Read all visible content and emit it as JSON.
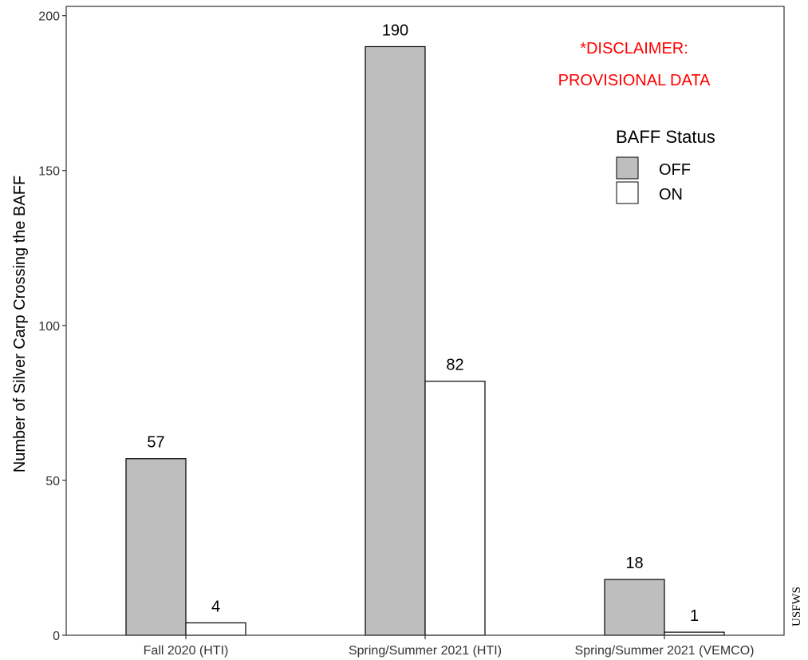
{
  "chart_data": {
    "type": "bar",
    "categories": [
      "Fall 2020 (HTI)",
      "Spring/Summer 2021 (HTI)",
      "Spring/Summer 2021 (VEMCO)"
    ],
    "series": [
      {
        "name": "OFF",
        "values": [
          57,
          190,
          18
        ],
        "color": "#bebebe"
      },
      {
        "name": "ON",
        "values": [
          4,
          82,
          1
        ],
        "color": "#ffffff"
      }
    ],
    "data_labels": [
      [
        "57",
        "4"
      ],
      [
        "190",
        "82"
      ],
      [
        "18",
        "1"
      ]
    ],
    "ylabel": "Number of Silver Carp Crossing the BAFF",
    "xlabel": "",
    "ylim": [
      0,
      203
    ],
    "yticks": [
      0,
      50,
      100,
      150,
      200
    ],
    "grid": false,
    "legend": {
      "title": "BAFF Status",
      "placement": "top-right"
    },
    "annotation": {
      "lines": [
        "*DISCLAIMER:",
        "PROVISIONAL DATA"
      ],
      "color": "#ff0000"
    }
  },
  "credit": "USFWS"
}
